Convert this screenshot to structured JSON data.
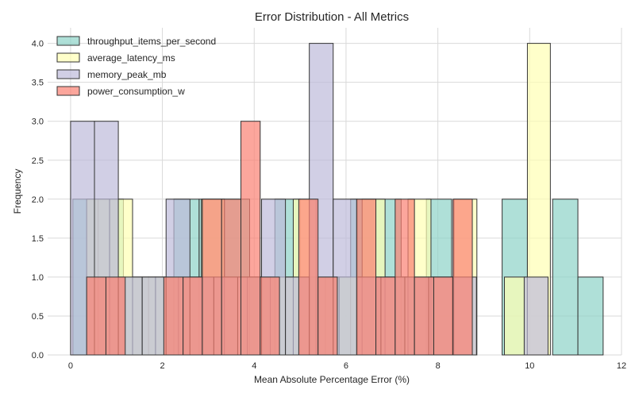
{
  "chart_data": {
    "type": "histogram",
    "title": "Error Distribution - All Metrics",
    "xlabel": "Mean Absolute Percentage Error (%)",
    "ylabel": "Frequency",
    "xlim": [
      -0.5,
      12
    ],
    "ylim": [
      0,
      4.2
    ],
    "xticks": [
      0,
      2,
      4,
      6,
      8,
      10,
      12
    ],
    "yticks": [
      0.0,
      0.5,
      1.0,
      1.5,
      2.0,
      2.5,
      3.0,
      3.5,
      4.0
    ],
    "grid": true,
    "legend_position": "top-left",
    "series": [
      {
        "name": "throughput_items_per_second",
        "color": "#8dd3c7",
        "bins": [
          {
            "x0": 0.05,
            "x1": 0.6,
            "count": 2
          },
          {
            "x0": 0.6,
            "x1": 1.15,
            "count": 2
          },
          {
            "x0": 1.15,
            "x1": 1.7,
            "count": 1
          },
          {
            "x0": 1.7,
            "x1": 2.25,
            "count": 1
          },
          {
            "x0": 2.25,
            "x1": 2.8,
            "count": 2
          },
          {
            "x0": 2.8,
            "x1": 3.35,
            "count": 2
          },
          {
            "x0": 3.35,
            "x1": 3.9,
            "count": 2
          },
          {
            "x0": 3.9,
            "x1": 4.45,
            "count": 1
          },
          {
            "x0": 4.45,
            "x1": 5.0,
            "count": 2
          },
          {
            "x0": 5.0,
            "x1": 5.55,
            "count": 1
          },
          {
            "x0": 5.55,
            "x1": 6.1,
            "count": 1
          },
          {
            "x0": 6.1,
            "x1": 6.65,
            "count": 2
          },
          {
            "x0": 6.65,
            "x1": 7.2,
            "count": 2
          },
          {
            "x0": 7.2,
            "x1": 7.75,
            "count": 1
          },
          {
            "x0": 7.75,
            "x1": 8.3,
            "count": 2
          },
          {
            "x0": 9.4,
            "x1": 9.95,
            "count": 2
          },
          {
            "x0": 10.5,
            "x1": 11.05,
            "count": 2
          },
          {
            "x0": 11.05,
            "x1": 11.6,
            "count": 1
          }
        ]
      },
      {
        "name": "average_latency_ms",
        "color": "#ffffb3",
        "bins": [
          {
            "x0": 0.35,
            "x1": 0.85,
            "count": 2
          },
          {
            "x0": 0.85,
            "x1": 1.35,
            "count": 2
          },
          {
            "x0": 1.35,
            "x1": 1.85,
            "count": 1
          },
          {
            "x0": 1.85,
            "x1": 2.35,
            "count": 1
          },
          {
            "x0": 2.35,
            "x1": 2.85,
            "count": 1
          },
          {
            "x0": 2.85,
            "x1": 3.35,
            "count": 2
          },
          {
            "x0": 3.35,
            "x1": 3.85,
            "count": 1
          },
          {
            "x0": 3.85,
            "x1": 4.35,
            "count": 1
          },
          {
            "x0": 4.35,
            "x1": 4.85,
            "count": 1
          },
          {
            "x0": 4.85,
            "x1": 5.35,
            "count": 2
          },
          {
            "x0": 5.35,
            "x1": 5.85,
            "count": 1
          },
          {
            "x0": 5.85,
            "x1": 6.35,
            "count": 1
          },
          {
            "x0": 6.35,
            "x1": 6.85,
            "count": 2
          },
          {
            "x0": 6.85,
            "x1": 7.35,
            "count": 1
          },
          {
            "x0": 7.35,
            "x1": 7.85,
            "count": 2
          },
          {
            "x0": 7.85,
            "x1": 8.35,
            "count": 1
          },
          {
            "x0": 8.35,
            "x1": 8.85,
            "count": 2
          },
          {
            "x0": 9.45,
            "x1": 9.95,
            "count": 1
          },
          {
            "x0": 9.95,
            "x1": 10.45,
            "count": 4
          }
        ]
      },
      {
        "name": "memory_peak_mb",
        "color": "#bebada",
        "bins": [
          {
            "x0": 0.0,
            "x1": 0.52,
            "count": 3
          },
          {
            "x0": 0.52,
            "x1": 1.04,
            "count": 3
          },
          {
            "x0": 1.04,
            "x1": 1.56,
            "count": 1
          },
          {
            "x0": 1.56,
            "x1": 2.08,
            "count": 1
          },
          {
            "x0": 2.08,
            "x1": 2.6,
            "count": 2
          },
          {
            "x0": 2.6,
            "x1": 3.12,
            "count": 1
          },
          {
            "x0": 3.12,
            "x1": 3.64,
            "count": 1
          },
          {
            "x0": 3.64,
            "x1": 4.16,
            "count": 1
          },
          {
            "x0": 4.16,
            "x1": 4.68,
            "count": 2
          },
          {
            "x0": 4.68,
            "x1": 5.2,
            "count": 1
          },
          {
            "x0": 5.2,
            "x1": 5.72,
            "count": 4
          },
          {
            "x0": 5.72,
            "x1": 6.24,
            "count": 2
          },
          {
            "x0": 6.24,
            "x1": 6.76,
            "count": 1
          },
          {
            "x0": 6.76,
            "x1": 7.28,
            "count": 1
          },
          {
            "x0": 7.28,
            "x1": 7.8,
            "count": 1
          },
          {
            "x0": 7.8,
            "x1": 8.32,
            "count": 1
          },
          {
            "x0": 8.32,
            "x1": 8.84,
            "count": 1
          },
          {
            "x0": 9.88,
            "x1": 10.4,
            "count": 1
          }
        ]
      },
      {
        "name": "power_consumption_w",
        "color": "#fb8072",
        "bins": [
          {
            "x0": 0.35,
            "x1": 0.77,
            "count": 1
          },
          {
            "x0": 0.77,
            "x1": 1.19,
            "count": 1
          },
          {
            "x0": 1.19,
            "x1": 1.61,
            "count": 0
          },
          {
            "x0": 1.61,
            "x1": 2.03,
            "count": 0
          },
          {
            "x0": 2.03,
            "x1": 2.45,
            "count": 1
          },
          {
            "x0": 2.45,
            "x1": 2.87,
            "count": 1
          },
          {
            "x0": 2.87,
            "x1": 3.29,
            "count": 2
          },
          {
            "x0": 3.29,
            "x1": 3.71,
            "count": 2
          },
          {
            "x0": 3.71,
            "x1": 4.13,
            "count": 3
          },
          {
            "x0": 4.13,
            "x1": 4.55,
            "count": 1
          },
          {
            "x0": 4.55,
            "x1": 4.97,
            "count": 0
          },
          {
            "x0": 4.97,
            "x1": 5.39,
            "count": 2
          },
          {
            "x0": 5.39,
            "x1": 5.81,
            "count": 1
          },
          {
            "x0": 5.81,
            "x1": 6.23,
            "count": 0
          },
          {
            "x0": 6.23,
            "x1": 6.65,
            "count": 2
          },
          {
            "x0": 6.65,
            "x1": 7.07,
            "count": 1
          },
          {
            "x0": 7.07,
            "x1": 7.49,
            "count": 2
          },
          {
            "x0": 7.49,
            "x1": 7.91,
            "count": 1
          },
          {
            "x0": 7.91,
            "x1": 8.33,
            "count": 1
          },
          {
            "x0": 8.33,
            "x1": 8.75,
            "count": 2
          }
        ]
      }
    ]
  }
}
